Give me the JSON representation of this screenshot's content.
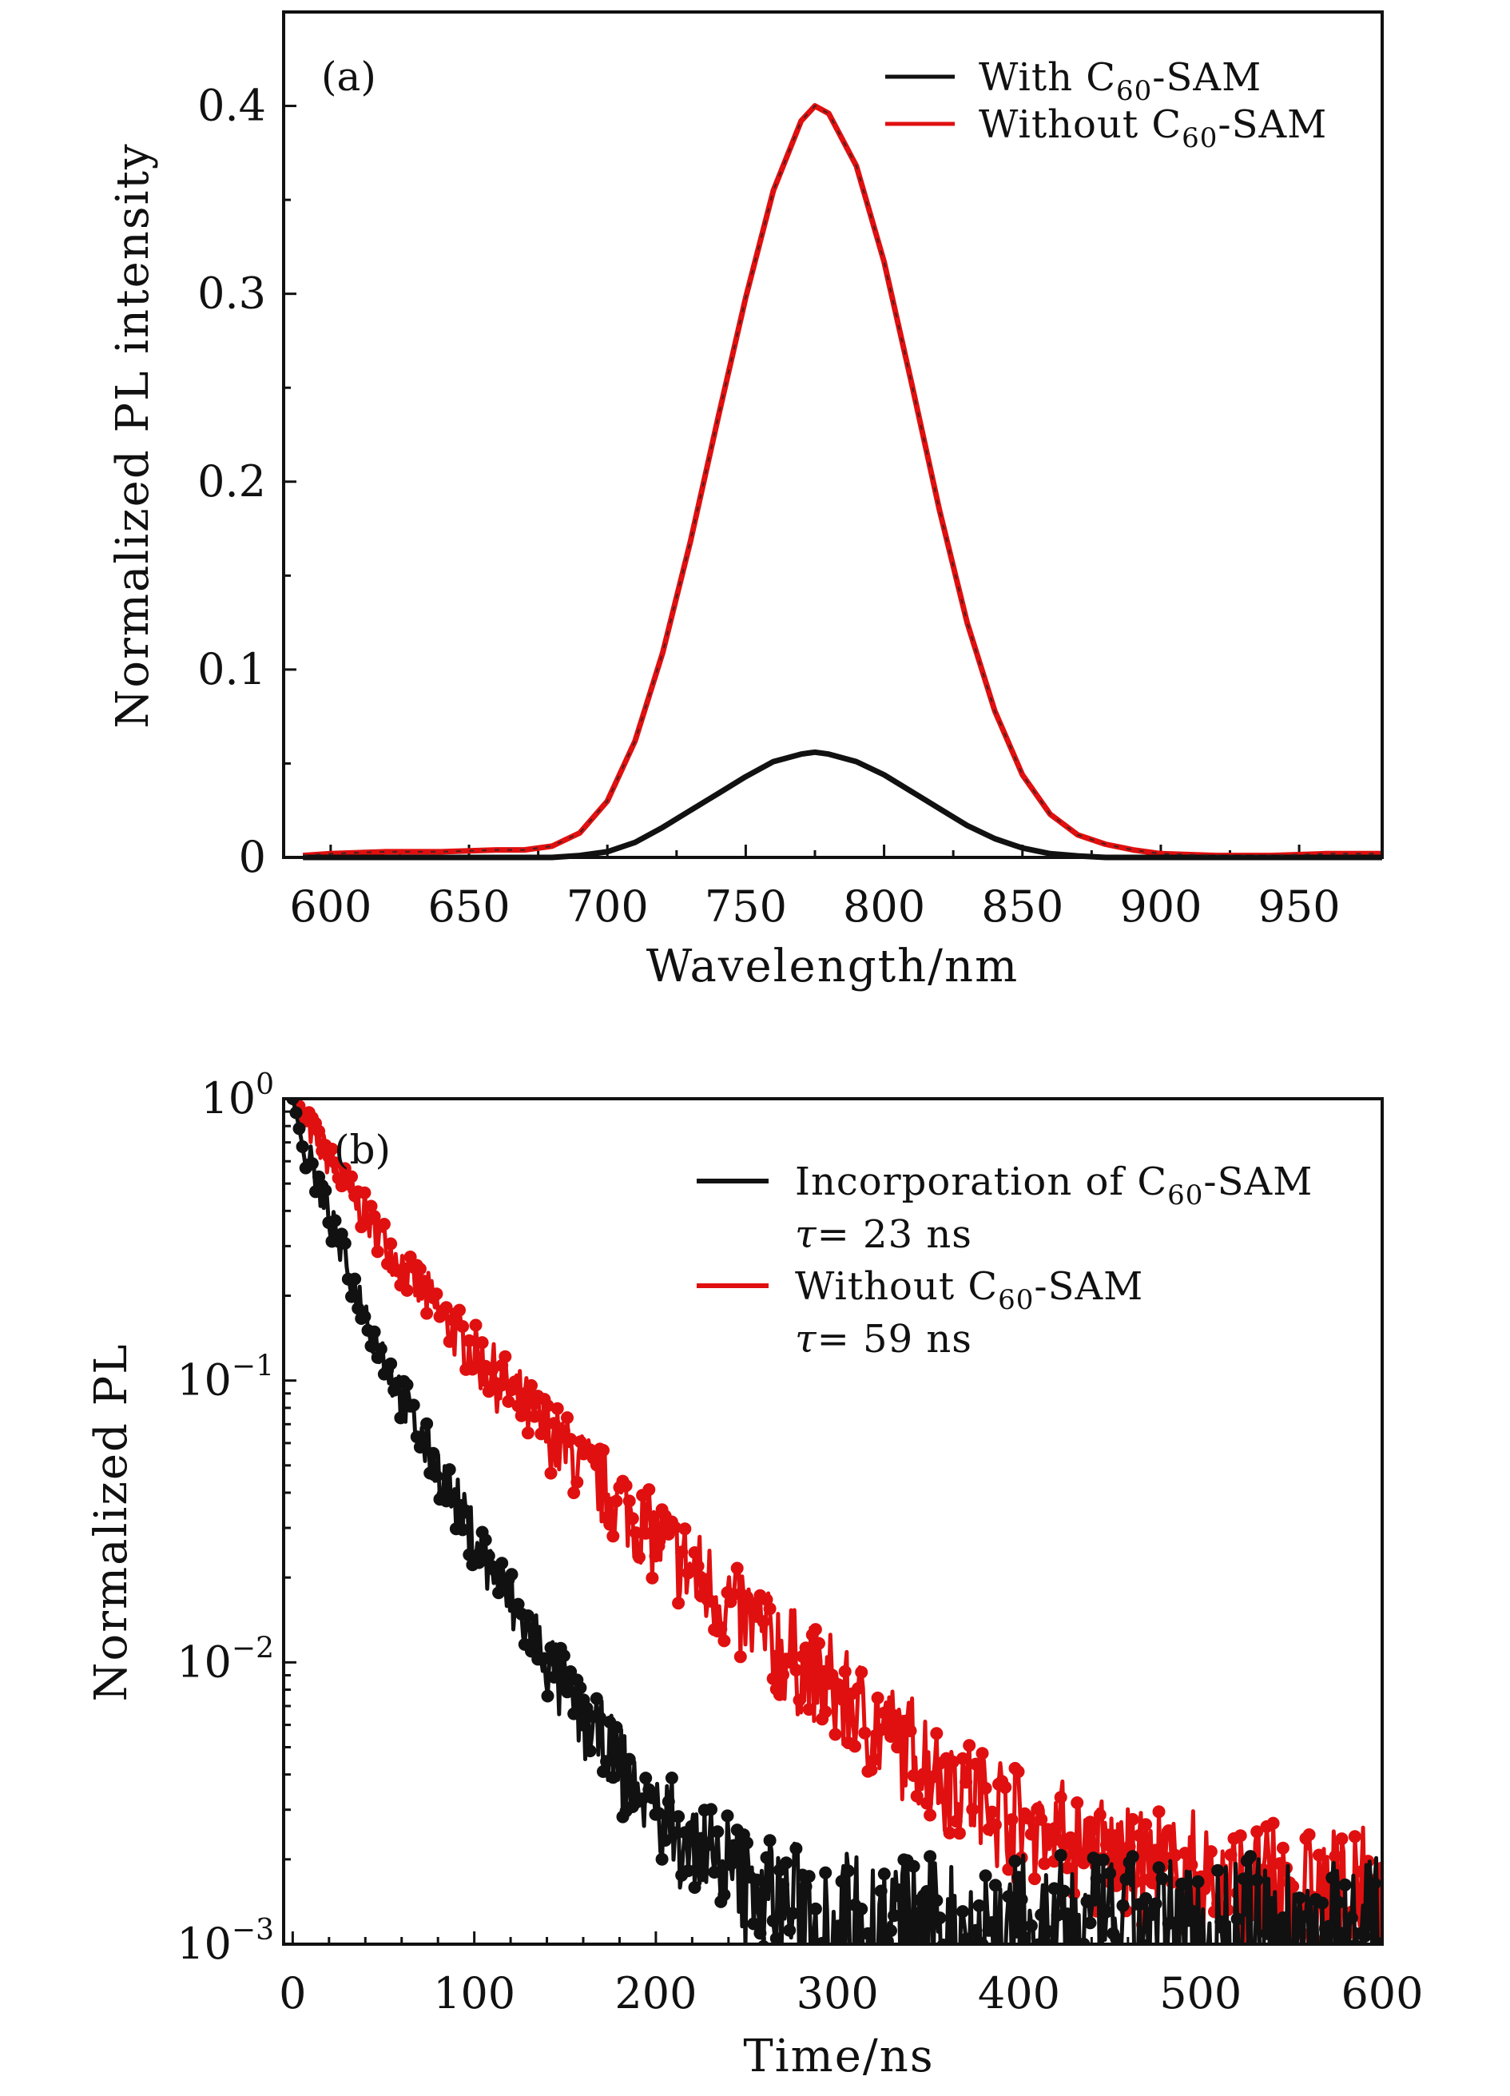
{
  "chart_data": [
    {
      "type": "line",
      "panel_label": "(a)",
      "xlabel": "Wavelength/nm",
      "ylabel": "Normalized PL intensity",
      "xlim": [
        583,
        980
      ],
      "ylim": [
        0,
        0.45
      ],
      "x_ticks": [
        600,
        650,
        700,
        750,
        800,
        850,
        900,
        950
      ],
      "x_tick_labels": [
        "600",
        "650",
        "700",
        "750",
        "800",
        "850",
        "900",
        "950"
      ],
      "y_ticks": [
        0,
        0.1,
        0.2,
        0.3,
        0.4
      ],
      "y_tick_labels": [
        "0",
        "0.1",
        "0.2",
        "0.3",
        "0.4"
      ],
      "legend_position": "top-right",
      "grid": false,
      "series": [
        {
          "name": "With C60-SAM",
          "legend_main": "With C",
          "legend_sub": "60",
          "legend_rest": "-SAM",
          "color": "#111111",
          "x": [
            590,
            600,
            620,
            640,
            660,
            680,
            690,
            700,
            710,
            720,
            730,
            740,
            750,
            760,
            770,
            775,
            780,
            790,
            800,
            810,
            820,
            830,
            840,
            850,
            860,
            870,
            880,
            900,
            920,
            940,
            960,
            980
          ],
          "y": [
            0,
            0,
            0,
            0,
            0,
            0,
            0.001,
            0.003,
            0.008,
            0.016,
            0.025,
            0.034,
            0.043,
            0.051,
            0.055,
            0.056,
            0.055,
            0.051,
            0.044,
            0.035,
            0.026,
            0.017,
            0.01,
            0.005,
            0.002,
            0.0008,
            0,
            0,
            0,
            0,
            0,
            0
          ]
        },
        {
          "name": "Without C60-SAM",
          "legend_main": "Without C",
          "legend_sub": "60",
          "legend_rest": "-SAM",
          "color": "#e01010",
          "x": [
            590,
            600,
            620,
            640,
            660,
            670,
            680,
            690,
            700,
            710,
            720,
            730,
            740,
            750,
            760,
            770,
            775,
            780,
            790,
            800,
            810,
            820,
            830,
            840,
            850,
            860,
            870,
            880,
            890,
            900,
            920,
            940,
            960,
            980
          ],
          "y": [
            0.001,
            0.002,
            0.003,
            0.003,
            0.004,
            0.004,
            0.006,
            0.013,
            0.03,
            0.062,
            0.109,
            0.168,
            0.234,
            0.298,
            0.355,
            0.392,
            0.4,
            0.396,
            0.368,
            0.317,
            0.252,
            0.185,
            0.125,
            0.078,
            0.044,
            0.023,
            0.012,
            0.007,
            0.004,
            0.002,
            0.001,
            0.001,
            0.002,
            0.002
          ]
        }
      ]
    },
    {
      "type": "scatter",
      "panel_label": "(b)",
      "xlabel": "Time/ns",
      "ylabel": "Normalized PL",
      "log_y": true,
      "xlim": [
        -5,
        600
      ],
      "ylim": [
        0.001,
        1
      ],
      "x_ticks": [
        0,
        100,
        200,
        300,
        400,
        500,
        600
      ],
      "x_tick_labels": [
        "0",
        "100",
        "200",
        "300",
        "400",
        "500",
        "600"
      ],
      "y_ticks": [
        1,
        0.1,
        0.01,
        0.001
      ],
      "y_tick_base": "10",
      "y_tick_exps": [
        "0",
        "−1",
        "−2",
        "−3"
      ],
      "legend_position": "top-right",
      "grid": false,
      "series": [
        {
          "name": "Incorporation of C60-SAM",
          "legend_main": "Incorporation of C",
          "legend_sub": "60",
          "legend_rest": "-SAM",
          "annotation_tau": "τ",
          "annotation_rest": "= 23 ns",
          "color": "#111111",
          "lifetime_ns": 23,
          "floor": 0.0011
        },
        {
          "name": "Without C60-SAM",
          "legend_main": "Without C",
          "legend_sub": "60",
          "legend_rest": "-SAM",
          "annotation_tau": "τ",
          "annotation_rest": "= 59 ns",
          "color": "#e01010",
          "lifetime_ns": 59,
          "floor": 0.0013
        }
      ]
    }
  ]
}
